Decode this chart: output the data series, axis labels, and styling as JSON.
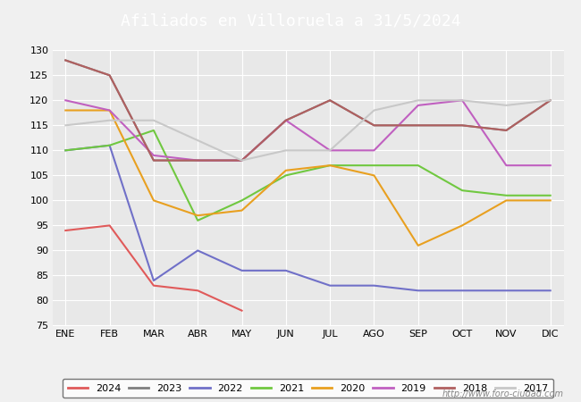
{
  "title": "Afiliados en Villoruela a 31/5/2024",
  "title_fontsize": 13,
  "title_color": "white",
  "title_bg_color": "#4472c4",
  "ylim": [
    75,
    130
  ],
  "yticks": [
    75,
    80,
    85,
    90,
    95,
    100,
    105,
    110,
    115,
    120,
    125,
    130
  ],
  "months": [
    "ENE",
    "FEB",
    "MAR",
    "ABR",
    "MAY",
    "JUN",
    "JUL",
    "AGO",
    "SEP",
    "OCT",
    "NOV",
    "DIC"
  ],
  "watermark": "http://www.foro-ciudad.com",
  "series": {
    "2024": {
      "color": "#e05a5a",
      "data": [
        94,
        95,
        83,
        82,
        78,
        null,
        null,
        null,
        null,
        null,
        null,
        null
      ]
    },
    "2023": {
      "color": "#7f7f7f",
      "data": [
        128,
        125,
        108,
        108,
        108,
        116,
        120,
        115,
        115,
        115,
        114,
        120
      ]
    },
    "2022": {
      "color": "#7070c8",
      "data": [
        110,
        111,
        84,
        90,
        86,
        86,
        83,
        83,
        82,
        82,
        82,
        82
      ]
    },
    "2021": {
      "color": "#70c840",
      "data": [
        110,
        111,
        114,
        96,
        100,
        105,
        107,
        107,
        107,
        102,
        101,
        101
      ]
    },
    "2020": {
      "color": "#e8a020",
      "data": [
        118,
        118,
        100,
        97,
        98,
        106,
        107,
        105,
        91,
        95,
        100,
        100
      ]
    },
    "2019": {
      "color": "#c060c0",
      "data": [
        120,
        118,
        109,
        108,
        108,
        116,
        110,
        110,
        119,
        120,
        107,
        107
      ]
    },
    "2018": {
      "color": "#b06060",
      "data": [
        128,
        125,
        108,
        108,
        108,
        116,
        120,
        115,
        115,
        115,
        114,
        120
      ]
    },
    "2017": {
      "color": "#c8c8c8",
      "data": [
        115,
        116,
        116,
        112,
        108,
        110,
        110,
        118,
        120,
        120,
        119,
        120
      ]
    }
  },
  "legend_order": [
    "2024",
    "2023",
    "2022",
    "2021",
    "2020",
    "2019",
    "2018",
    "2017"
  ],
  "background_color": "#f0f0f0",
  "plot_bg_color": "#e8e8e8",
  "grid_color": "#ffffff"
}
